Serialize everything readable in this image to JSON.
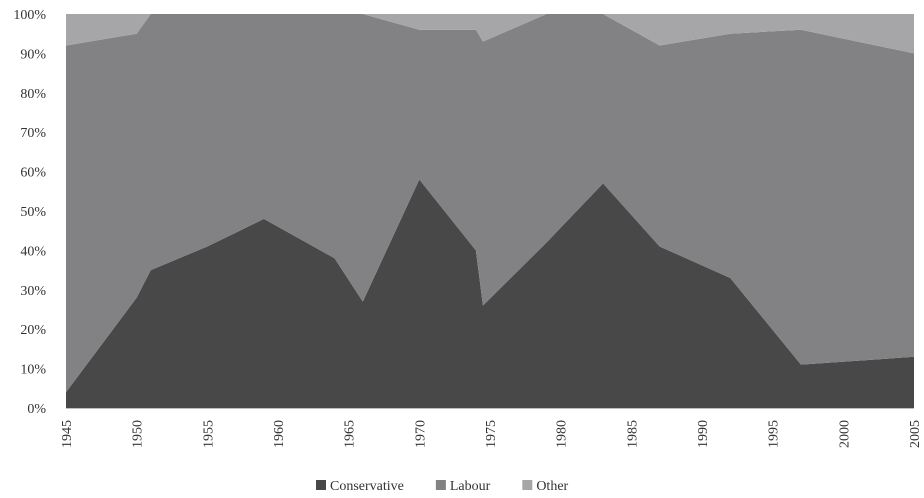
{
  "chart_data": {
    "type": "area",
    "stacked": true,
    "percent": true,
    "x": [
      1945,
      1950,
      1951,
      1955,
      1959,
      1964,
      1966,
      1970,
      1974,
      1974.5,
      1979,
      1983,
      1987,
      1992,
      1997,
      2001,
      2005
    ],
    "series": [
      {
        "name": "Conservative",
        "color": "#484848",
        "values": [
          4,
          28,
          35,
          41,
          48,
          38,
          27,
          58,
          40,
          26,
          42,
          57,
          41,
          33,
          11,
          12,
          13
        ]
      },
      {
        "name": "Labour",
        "color": "#828284",
        "values": [
          88,
          67,
          65,
          59,
          52,
          62,
          73,
          38,
          56,
          67,
          58,
          43,
          51,
          62,
          85,
          81,
          77
        ]
      },
      {
        "name": "Other",
        "color": "#a6a6a8",
        "values": [
          8,
          5,
          0,
          0,
          0,
          0,
          0,
          4,
          4,
          7,
          0,
          0,
          8,
          5,
          4,
          7,
          10
        ]
      }
    ],
    "xlim": [
      1945,
      2005
    ],
    "ylim": [
      0,
      100
    ],
    "x_ticks": [
      "1945",
      "1950",
      "1955",
      "1960",
      "1965",
      "1970",
      "1975",
      "1980",
      "1985",
      "1990",
      "1995",
      "2000",
      "2005"
    ],
    "y_ticks": [
      "0%",
      "10%",
      "20%",
      "30%",
      "40%",
      "50%",
      "60%",
      "70%",
      "80%",
      "90%",
      "100%"
    ],
    "grid": false,
    "legend": "bottom-center"
  }
}
